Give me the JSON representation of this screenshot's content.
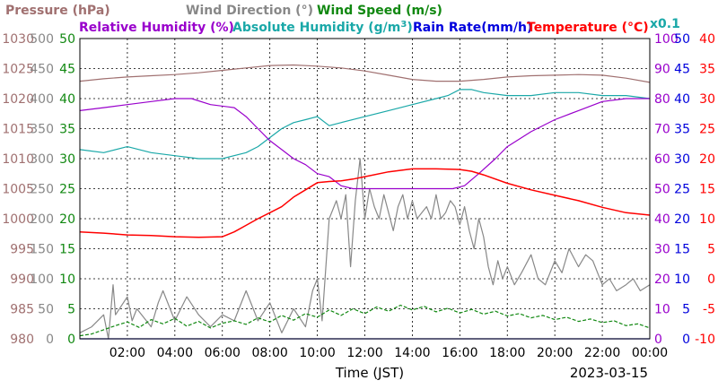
{
  "chart_data": {
    "type": "line",
    "title": "",
    "xlabel": "Time (JST)",
    "date": "2023-03-15",
    "x_range": [
      "00:00",
      "24:00"
    ],
    "x_ticks": [
      "02:00",
      "04:00",
      "06:00",
      "08:00",
      "10:00",
      "12:00",
      "14:00",
      "16:00",
      "18:00",
      "20:00",
      "22:00",
      "00:00"
    ],
    "grid": true,
    "legend": {
      "pressure": "Pressure (hPa)",
      "wind_direction": "Wind Direction (°)",
      "wind_speed": "Wind Speed (m/s)",
      "relative_humidity": "Relative Humidity (%)",
      "absolute_humidity_a": "Absolute Humidity (g/m",
      "absolute_humidity_sup": "3",
      "absolute_humidity_b": ")",
      "rain_rate": "Rain Rate(mm/h)",
      "temperature": "Temperature (°C)",
      "scale_note": "x0.1"
    },
    "axes": {
      "pressure": {
        "range": [
          980,
          1030
        ],
        "ticks": [
          "980",
          "985",
          "990",
          "995",
          "1000",
          "1005",
          "1010",
          "1015",
          "1020",
          "1025",
          "1030"
        ]
      },
      "wind_direction": {
        "range": [
          0,
          500
        ],
        "ticks": [
          "0",
          "50",
          "100",
          "150",
          "200",
          "250",
          "300",
          "350",
          "400",
          "450",
          "500"
        ]
      },
      "wind_speed": {
        "range": [
          0,
          50
        ],
        "ticks": [
          "0",
          "5",
          "10",
          "15",
          "20",
          "25",
          "30",
          "35",
          "40",
          "45",
          "50"
        ]
      },
      "humidity": {
        "range": [
          0,
          100
        ],
        "ticks": [
          "0",
          "10",
          "20",
          "30",
          "40",
          "50",
          "60",
          "70",
          "80",
          "90",
          "100"
        ]
      },
      "rain_rate": {
        "range": [
          0,
          50
        ],
        "ticks": [
          "0",
          "5",
          "10",
          "15",
          "20",
          "25",
          "30",
          "35",
          "40",
          "45",
          "50"
        ]
      },
      "temperature": {
        "range": [
          -10,
          40
        ],
        "ticks": [
          "-10",
          "-5",
          "0",
          "5",
          "10",
          "15",
          "20",
          "25",
          "30",
          "35",
          "40"
        ]
      }
    },
    "series": [
      {
        "name": "Pressure (hPa)",
        "color": "#a07070",
        "axis": "pressure",
        "x": [
          0,
          1,
          2,
          3,
          4,
          5,
          6,
          7,
          8,
          9,
          10,
          11,
          12,
          13,
          14,
          15,
          16,
          17,
          18,
          19,
          20,
          21,
          22,
          23,
          24
        ],
        "values": [
          1022.9,
          1023.3,
          1023.6,
          1023.8,
          1024.0,
          1024.3,
          1024.7,
          1025.1,
          1025.5,
          1025.6,
          1025.4,
          1025.1,
          1024.6,
          1023.9,
          1023.2,
          1022.9,
          1022.9,
          1023.2,
          1023.6,
          1023.8,
          1023.9,
          1024.0,
          1023.9,
          1023.4,
          1022.7
        ]
      },
      {
        "name": "Relative Humidity (%)",
        "color": "#9900cc",
        "axis": "humidity",
        "x": [
          0,
          1,
          2,
          3,
          4,
          4.7,
          5.5,
          6.5,
          7,
          7.5,
          8,
          8.5,
          9,
          9.5,
          10,
          10.5,
          11,
          11.5,
          12,
          14,
          15.7,
          16.2,
          16.8,
          17.5,
          18,
          19,
          20,
          21,
          22,
          23,
          24
        ],
        "values": [
          76,
          77,
          78,
          79,
          80,
          80,
          78,
          77,
          74,
          70,
          66,
          63,
          60,
          58,
          55,
          54,
          51,
          50,
          50,
          50,
          50,
          51,
          55,
          60,
          64,
          69,
          73,
          76,
          79,
          80,
          80
        ]
      },
      {
        "name": "Absolute Humidity (g/m3)",
        "color": "#1aa8a8",
        "axis": "humidity",
        "scale": 0.1,
        "x": [
          0,
          1,
          2,
          3,
          4,
          5,
          6,
          7,
          7.5,
          8,
          8.5,
          9,
          9.5,
          10,
          10.5,
          11,
          12,
          13,
          14,
          15,
          15.5,
          16,
          16.5,
          17,
          18,
          19,
          20,
          21,
          22,
          23,
          24
        ],
        "values": [
          63,
          62,
          64,
          62,
          61,
          60,
          60,
          62,
          64,
          67,
          70,
          72,
          73,
          74,
          71,
          72,
          74,
          76,
          78,
          80,
          81,
          83,
          83,
          82,
          81,
          81,
          82,
          82,
          81,
          81,
          80
        ]
      },
      {
        "name": "Temperature (°C)",
        "color": "#ff0000",
        "axis": "temperature",
        "x": [
          0,
          1,
          2,
          3,
          4,
          5,
          6,
          6.5,
          7,
          7.5,
          8,
          8.5,
          9,
          9.5,
          10,
          10.5,
          11,
          11.5,
          12,
          13,
          14,
          15,
          16,
          16.5,
          17,
          18,
          19,
          20,
          21,
          22,
          23,
          24
        ],
        "values": [
          7.8,
          7.6,
          7.3,
          7.2,
          7.0,
          6.9,
          7.0,
          7.8,
          8.9,
          10.0,
          11.0,
          12.0,
          13.6,
          14.8,
          16.0,
          16.2,
          16.3,
          16.6,
          17.0,
          17.8,
          18.3,
          18.3,
          18.2,
          17.9,
          17.3,
          15.9,
          14.8,
          13.9,
          13.0,
          11.9,
          11.0,
          10.6
        ]
      },
      {
        "name": "Wind Direction (°)",
        "color": "#888888",
        "axis": "wind_direction",
        "x": [
          0,
          0.5,
          1,
          1.2,
          1.4,
          1.5,
          2,
          2.2,
          2.4,
          3,
          3.3,
          3.5,
          4,
          4.5,
          5,
          5.5,
          6,
          6.5,
          7,
          7.5,
          8,
          8.5,
          9,
          9.5,
          9.8,
          10,
          10.2,
          10.5,
          10.8,
          11,
          11.2,
          11.4,
          11.6,
          11.8,
          12,
          12.2,
          12.4,
          12.6,
          12.8,
          13,
          13.2,
          13.4,
          13.6,
          13.8,
          14,
          14.2,
          14.4,
          14.6,
          14.8,
          15,
          15.2,
          15.4,
          15.6,
          15.8,
          16,
          16.2,
          16.4,
          16.6,
          16.8,
          17,
          17.2,
          17.4,
          17.6,
          17.8,
          18,
          18.3,
          18.6,
          19,
          19.3,
          19.6,
          20,
          20.3,
          20.6,
          21,
          21.3,
          21.6,
          22,
          22.3,
          22.6,
          23,
          23.3,
          23.6,
          24
        ],
        "values": [
          10,
          20,
          40,
          0,
          90,
          40,
          70,
          30,
          50,
          20,
          60,
          80,
          30,
          70,
          40,
          20,
          40,
          30,
          80,
          30,
          60,
          10,
          50,
          20,
          80,
          100,
          30,
          200,
          230,
          200,
          240,
          120,
          230,
          300,
          200,
          250,
          220,
          200,
          240,
          210,
          180,
          220,
          240,
          200,
          230,
          200,
          210,
          220,
          200,
          240,
          200,
          210,
          230,
          220,
          190,
          220,
          180,
          150,
          200,
          170,
          120,
          90,
          130,
          100,
          120,
          90,
          110,
          140,
          100,
          90,
          130,
          110,
          150,
          120,
          140,
          130,
          90,
          100,
          80,
          90,
          100,
          80,
          90
        ]
      },
      {
        "name": "Wind Speed (m/s)",
        "color": "#118811",
        "axis": "wind_speed",
        "x": [
          0,
          0.5,
          1,
          1.5,
          2,
          2.5,
          3,
          3.5,
          4,
          4.5,
          5,
          5.5,
          6,
          6.5,
          7,
          7.5,
          8,
          8.5,
          9,
          9.5,
          10,
          10.5,
          11,
          11.5,
          12,
          12.5,
          13,
          13.5,
          14,
          14.5,
          15,
          15.5,
          16,
          16.5,
          17,
          17.5,
          18,
          18.5,
          19,
          19.5,
          20,
          20.5,
          21,
          21.5,
          22,
          22.5,
          23,
          23.5,
          24
        ],
        "values": [
          0.5,
          0.8,
          1.5,
          2.2,
          2.8,
          1.9,
          3.2,
          2.5,
          3.4,
          2.1,
          2.9,
          1.8,
          2.6,
          3.0,
          2.4,
          3.5,
          2.8,
          3.9,
          3.1,
          4.2,
          3.6,
          4.8,
          3.9,
          5.0,
          4.2,
          5.3,
          4.6,
          5.6,
          4.8,
          5.4,
          4.5,
          5.1,
          4.3,
          4.9,
          4.1,
          4.6,
          3.8,
          4.2,
          3.5,
          3.9,
          3.2,
          3.6,
          2.9,
          3.3,
          2.7,
          3.0,
          2.2,
          2.5,
          1.8
        ]
      },
      {
        "name": "Rain Rate(mm/h)",
        "color": "#0000dd",
        "axis": "rain_rate",
        "x": [
          0,
          24
        ],
        "values": [
          0,
          0
        ]
      }
    ]
  }
}
